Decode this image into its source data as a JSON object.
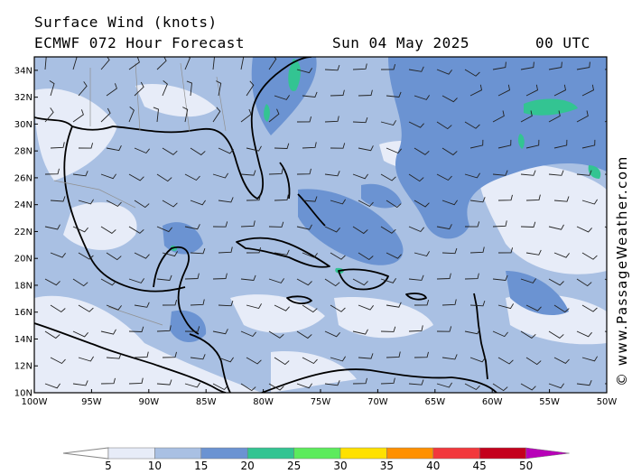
{
  "header": {
    "title": "Surface Wind (knots)",
    "model_line": "ECMWF 072 Hour Forecast",
    "date": "Sun 04 May 2025",
    "time": "00 UTC"
  },
  "credit": "© www.PassageWeather.com",
  "map": {
    "lon_range": [
      -100,
      -50
    ],
    "lat_range": [
      10,
      35
    ],
    "lat_labels": [
      "10N",
      "12N",
      "14N",
      "16N",
      "18N",
      "20N",
      "22N",
      "24N",
      "26N",
      "28N",
      "30N",
      "32N",
      "34N"
    ],
    "lon_labels": [
      "100W",
      "95W",
      "90W",
      "85W",
      "80W",
      "75W",
      "70W",
      "65W",
      "60W",
      "55W",
      "50W"
    ]
  },
  "colorbar": {
    "labels": [
      "5",
      "10",
      "15",
      "20",
      "25",
      "30",
      "35",
      "40",
      "45",
      "50"
    ],
    "colors": [
      "#e7ecf8",
      "#a9c0e3",
      "#6b93d2",
      "#33c492",
      "#5ceb5c",
      "#ffe100",
      "#ff9000",
      "#f2383c",
      "#c4001c",
      "#b800b8"
    ]
  }
}
